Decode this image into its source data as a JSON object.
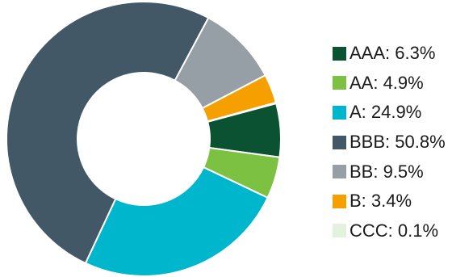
{
  "chart_data": {
    "type": "pie",
    "title": "",
    "legend_position": "right",
    "categories": [
      "AAA",
      "AA",
      "A",
      "BBB",
      "BB",
      "B",
      "CCC"
    ],
    "values": [
      6.3,
      4.9,
      24.9,
      50.8,
      9.5,
      3.4,
      0.1
    ],
    "colors": [
      "#0b5232",
      "#7cc142",
      "#00b6cd",
      "#435866",
      "#969fa5",
      "#f5a000",
      "#e3f2dc"
    ],
    "legend": [
      {
        "label": "AAA: 6.3%"
      },
      {
        "label": "AA: 4.9%"
      },
      {
        "label": "A: 24.9%"
      },
      {
        "label": "BBB: 50.8%"
      },
      {
        "label": "BB: 9.5%"
      },
      {
        "label": "B: 3.4%"
      },
      {
        "label": "CCC: 0.1%"
      }
    ]
  }
}
